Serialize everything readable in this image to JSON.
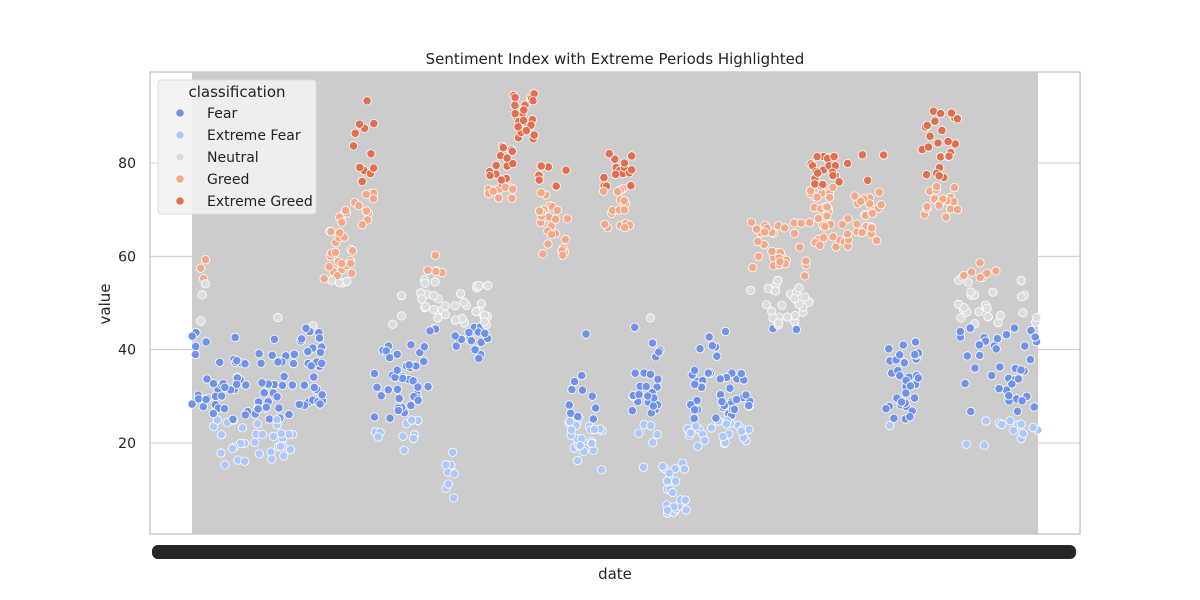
{
  "chart_data": {
    "type": "scatter",
    "title": "Sentiment Index with Extreme Periods Highlighted",
    "xlabel": "date",
    "ylabel": "value",
    "ylim": [
      0.5,
      99.5
    ],
    "yticks": [
      20,
      40,
      60,
      80
    ],
    "grid": true,
    "legend": {
      "title": "classification",
      "placement": "top-left",
      "entries": [
        "Fear",
        "Extreme Fear",
        "Neutral",
        "Greed",
        "Extreme Greed"
      ]
    },
    "colors": {
      "Fear": "#7092e8",
      "Extreme Fear": "#aec7fa",
      "Neutral": "#dddcdc",
      "Greed": "#f3a88a",
      "Extreme Greed": "#e0704f",
      "band": "#cccccc",
      "axes_bg": "#ffffff",
      "grid": "#cccccc"
    },
    "x_tick_labels_note": "overlapping date labels rendered as solid bar",
    "segments": [
      {
        "start": 0,
        "end": 0.008,
        "base": 38,
        "amp": 10,
        "kind": "fear"
      },
      {
        "start": 0.008,
        "end": 0.016,
        "base": 56,
        "amp": 10,
        "kind": "mixed_high"
      },
      {
        "start": 0.016,
        "end": 0.12,
        "base": 27,
        "amp": 12,
        "kind": "fear_low"
      },
      {
        "start": 0.12,
        "end": 0.155,
        "base": 38,
        "amp": 10,
        "kind": "fear"
      },
      {
        "start": 0.155,
        "end": 0.19,
        "base": 62,
        "amp": 8,
        "kind": "greed"
      },
      {
        "start": 0.19,
        "end": 0.215,
        "base": 80,
        "amp": 14,
        "kind": "egreed"
      },
      {
        "start": 0.215,
        "end": 0.27,
        "base": 30,
        "amp": 12,
        "kind": "fear_low"
      },
      {
        "start": 0.27,
        "end": 0.3,
        "base": 52,
        "amp": 10,
        "kind": "mixed_high"
      },
      {
        "start": 0.3,
        "end": 0.31,
        "base": 14,
        "amp": 6,
        "kind": "efear"
      },
      {
        "start": 0.31,
        "end": 0.35,
        "base": 46,
        "amp": 8,
        "kind": "neutral_fear"
      },
      {
        "start": 0.35,
        "end": 0.38,
        "base": 78,
        "amp": 6,
        "kind": "egreed"
      },
      {
        "start": 0.38,
        "end": 0.41,
        "base": 90,
        "amp": 5,
        "kind": "egreed"
      },
      {
        "start": 0.41,
        "end": 0.445,
        "base": 70,
        "amp": 10,
        "kind": "greed"
      },
      {
        "start": 0.445,
        "end": 0.485,
        "base": 24,
        "amp": 10,
        "kind": "fear_low"
      },
      {
        "start": 0.485,
        "end": 0.52,
        "base": 74,
        "amp": 8,
        "kind": "greed"
      },
      {
        "start": 0.52,
        "end": 0.555,
        "base": 28,
        "amp": 14,
        "kind": "fear_low"
      },
      {
        "start": 0.555,
        "end": 0.585,
        "base": 10,
        "amp": 6,
        "kind": "efear"
      },
      {
        "start": 0.585,
        "end": 0.66,
        "base": 27,
        "amp": 8,
        "kind": "fear_low"
      },
      {
        "start": 0.66,
        "end": 0.73,
        "base": 56,
        "amp": 12,
        "kind": "greed_neutral"
      },
      {
        "start": 0.73,
        "end": 0.82,
        "base": 72,
        "amp": 10,
        "kind": "greed"
      },
      {
        "start": 0.82,
        "end": 0.86,
        "base": 32,
        "amp": 10,
        "kind": "fear"
      },
      {
        "start": 0.86,
        "end": 0.905,
        "base": 80,
        "amp": 12,
        "kind": "egreed"
      },
      {
        "start": 0.905,
        "end": 0.95,
        "base": 50,
        "amp": 10,
        "kind": "mixed_high"
      },
      {
        "start": 0.95,
        "end": 1.0,
        "base": 34,
        "amp": 14,
        "kind": "fear_low"
      }
    ]
  }
}
